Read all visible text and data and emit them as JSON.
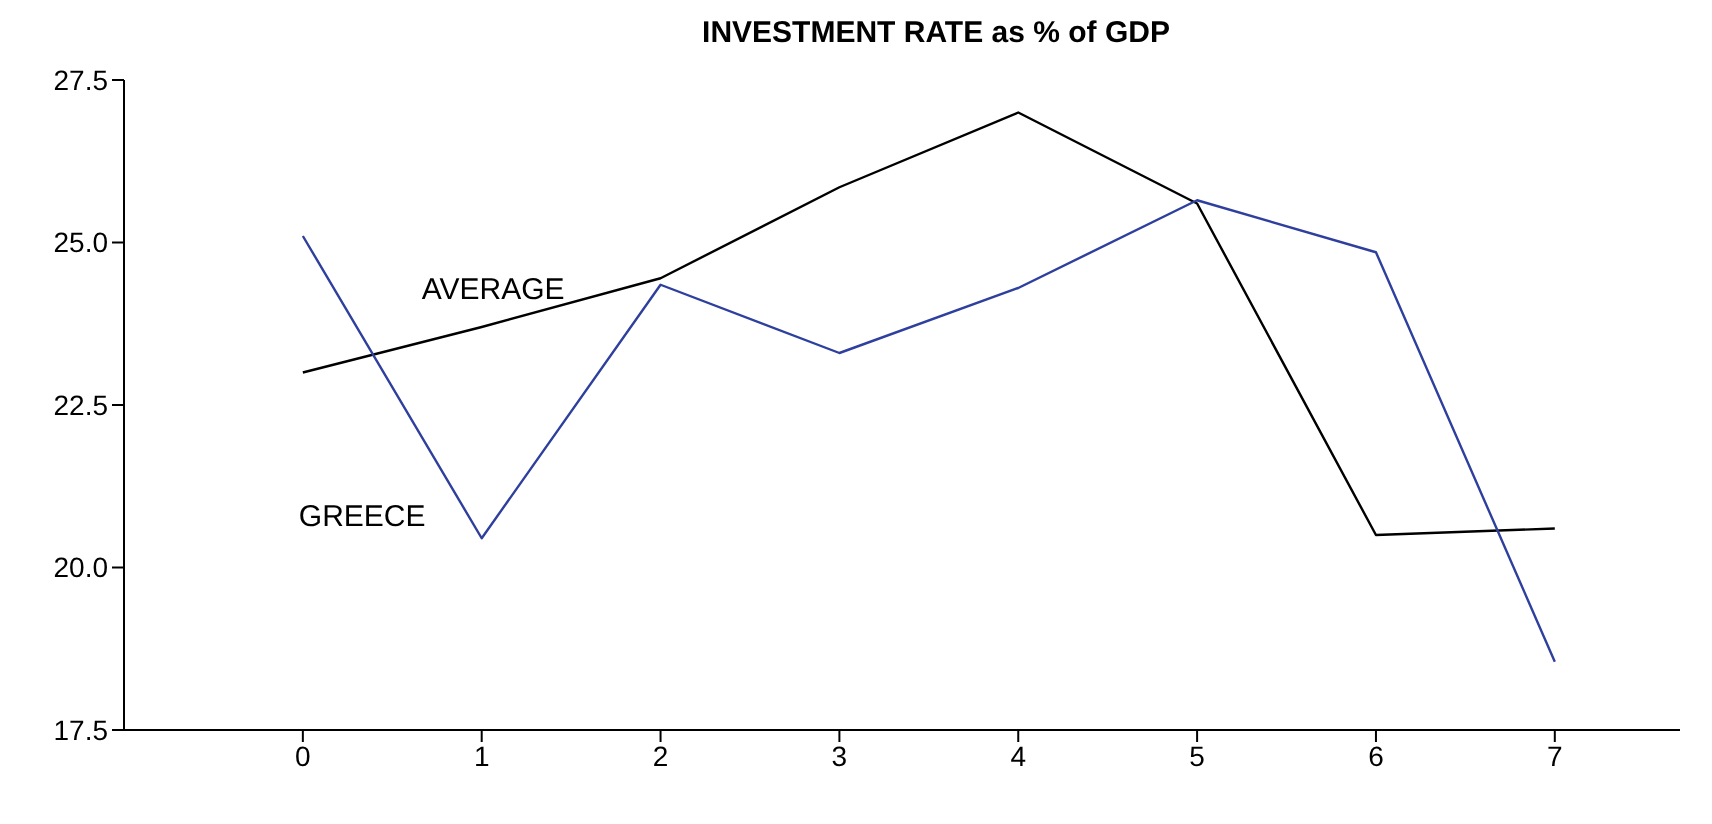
{
  "chart_data": {
    "type": "line",
    "title": "INVESTMENT RATE as % of GDP",
    "x": [
      0,
      1,
      2,
      3,
      4,
      5,
      6,
      7
    ],
    "series": [
      {
        "name": "AVERAGE",
        "color": "#000000",
        "values": [
          23.0,
          23.7,
          24.45,
          25.85,
          27.0,
          25.6,
          20.5,
          20.6
        ]
      },
      {
        "name": "GREECE",
        "color": "#2e3f9e",
        "values": [
          25.1,
          20.45,
          24.35,
          23.3,
          24.3,
          25.65,
          24.85,
          18.55
        ]
      }
    ],
    "xlim": [
      -1,
      7.7
    ],
    "xticks": [
      0,
      1,
      2,
      3,
      4,
      5,
      6,
      7
    ],
    "ylim": [
      17.5,
      27.5
    ],
    "yticks": [
      {
        "value": 17.5,
        "label": "17.5"
      },
      {
        "value": 20,
        "label": "20.0"
      },
      {
        "value": 22.5,
        "label": "22.5"
      },
      {
        "value": 25,
        "label": "25.0"
      },
      {
        "value": 27.5,
        "label": "27.5"
      }
    ],
    "grid": false,
    "legend": false,
    "marker": "none",
    "line_style": "solid"
  }
}
